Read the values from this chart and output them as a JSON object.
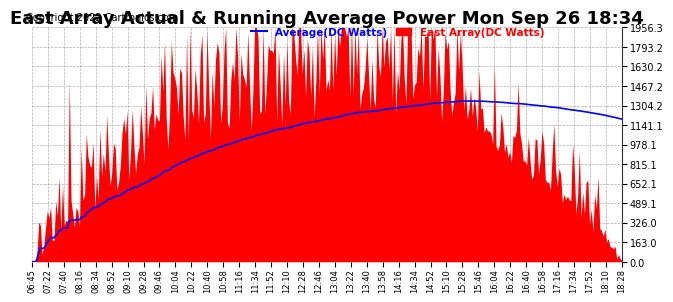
{
  "title": "East Array Actual & Running Average Power Mon Sep 26 18:34",
  "copyright": "Copyright 2022 Cartronics.com",
  "legend_avg": "Average(DC Watts)",
  "legend_east": "East Array(DC Watts)",
  "legend_avg_color": "blue",
  "legend_east_color": "red",
  "yticks": [
    0.0,
    163.0,
    326.0,
    489.1,
    652.1,
    815.1,
    978.1,
    1141.1,
    1304.2,
    1467.2,
    1630.2,
    1793.2,
    1956.3
  ],
  "ymax": 1956.3,
  "ymin": 0.0,
  "background_color": "#ffffff",
  "grid_color": "#aaaaaa",
  "title_fontsize": 13,
  "copyright_fontsize": 7,
  "xtick_labels": [
    "06:45",
    "07:22",
    "07:40",
    "08:16",
    "08:34",
    "08:52",
    "09:10",
    "09:28",
    "09:46",
    "10:04",
    "10:22",
    "10:40",
    "10:58",
    "11:16",
    "11:34",
    "11:52",
    "12:10",
    "12:28",
    "12:46",
    "13:04",
    "13:22",
    "13:40",
    "13:58",
    "14:16",
    "14:34",
    "14:52",
    "15:10",
    "15:28",
    "15:46",
    "16:04",
    "16:22",
    "16:40",
    "16:58",
    "17:16",
    "17:34",
    "17:52",
    "18:10",
    "18:28"
  ]
}
